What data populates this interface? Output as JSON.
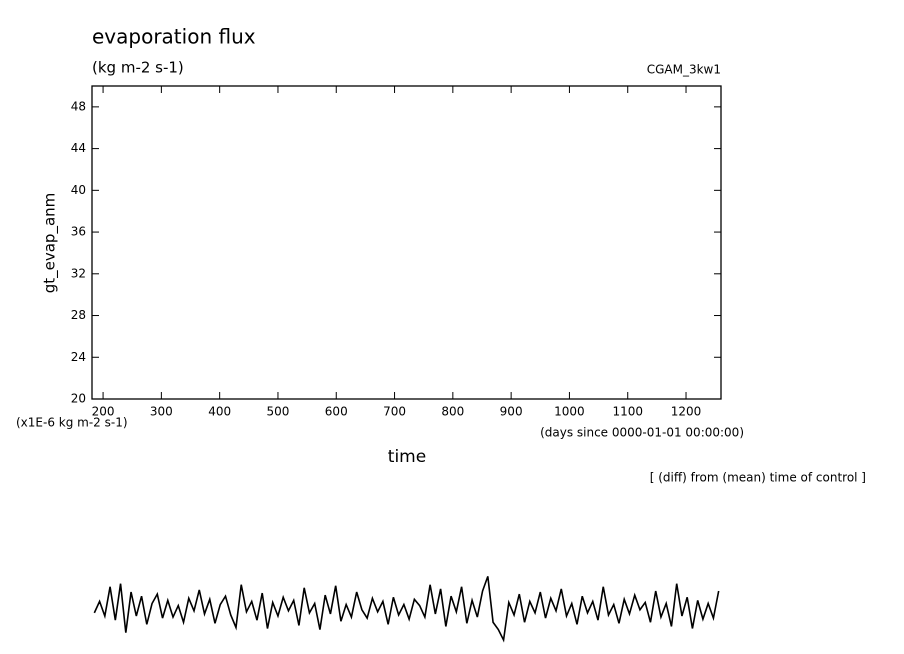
{
  "chart_data": {
    "type": "line",
    "title": "evaporation flux",
    "subtitle": "(kg m-2 s-1)",
    "annotation": "CGAM_3kw1",
    "y_label": "gt_evap_anm",
    "y_unit": "(x1E-6 kg m-2 s-1)",
    "x_label": "time",
    "x_unit": "(days since 0000-01-01 00:00:00)",
    "note": "[ (diff) from (mean) time of control ]",
    "xlim": [
      181,
      1260
    ],
    "xticks": [
      200,
      300,
      400,
      500,
      600,
      700,
      800,
      900,
      1000,
      1100,
      1200
    ],
    "ylim": [
      20,
      50
    ],
    "yticks": [
      20,
      24,
      28,
      32,
      36,
      40,
      44,
      48
    ],
    "series": [
      {
        "color": "#000000",
        "x": [
          185,
          194,
          203,
          212,
          221,
          230,
          239,
          248,
          257,
          266,
          275,
          284,
          293,
          302,
          311,
          320,
          329,
          338,
          347,
          356,
          365,
          374,
          383,
          392,
          401,
          410,
          419,
          428,
          437,
          446,
          455,
          464,
          473,
          482,
          491,
          500,
          509,
          518,
          527,
          536,
          545,
          554,
          563,
          572,
          581,
          590,
          599,
          608,
          617,
          626,
          635,
          644,
          653,
          662,
          671,
          680,
          689,
          698,
          707,
          716,
          725,
          734,
          743,
          752,
          761,
          770,
          779,
          788,
          797,
          806,
          815,
          824,
          833,
          842,
          851,
          860,
          869,
          878,
          887,
          896,
          905,
          914,
          923,
          932,
          941,
          950,
          959,
          968,
          977,
          986,
          995,
          1004,
          1013,
          1022,
          1031,
          1040,
          1049,
          1058,
          1067,
          1076,
          1085,
          1094,
          1103,
          1112,
          1121,
          1130,
          1139,
          1148,
          1157,
          1166,
          1175,
          1184,
          1193,
          1202,
          1211,
          1220,
          1229,
          1238,
          1247,
          1256
        ],
        "values": [
          -0.5,
          0.6,
          -0.8,
          2.0,
          -1.2,
          2.3,
          -2.4,
          1.5,
          -0.8,
          1.1,
          -1.6,
          0.4,
          1.3,
          -1.0,
          0.7,
          -0.9,
          0.2,
          -1.4,
          0.9,
          -0.3,
          1.7,
          -0.6,
          0.8,
          -1.5,
          0.3,
          1.1,
          -0.7,
          -1.9,
          2.2,
          -0.4,
          0.6,
          -1.2,
          1.4,
          -2.0,
          0.5,
          -0.8,
          1.0,
          -0.3,
          0.7,
          -1.7,
          1.9,
          -0.5,
          0.4,
          -2.1,
          1.2,
          -0.6,
          2.1,
          -1.3,
          0.3,
          -0.9,
          1.5,
          -0.2,
          -1.0,
          0.9,
          -0.4,
          0.6,
          -1.6,
          1.0,
          -0.7,
          0.3,
          -1.1,
          0.8,
          0.2,
          -0.9,
          2.2,
          -0.6,
          1.8,
          -1.8,
          1.1,
          -0.4,
          2.0,
          -1.5,
          0.7,
          -0.9,
          1.6,
          3.0,
          -1.4,
          -2.1,
          -3.1,
          0.5,
          -0.7,
          1.3,
          -1.4,
          0.6,
          -0.5,
          1.5,
          -1.0,
          0.9,
          -0.3,
          1.8,
          -0.8,
          0.4,
          -1.6,
          1.1,
          -0.5,
          0.6,
          -1.2,
          2.0,
          -0.7,
          0.3,
          -1.5,
          0.8,
          -0.6,
          1.2,
          -0.2,
          0.5,
          -1.4,
          1.6,
          -0.9,
          0.4,
          -1.8,
          2.3,
          -0.8,
          1.0,
          -2.0,
          0.7,
          -1.1,
          0.4,
          -1.0,
          1.6
        ]
      }
    ]
  }
}
